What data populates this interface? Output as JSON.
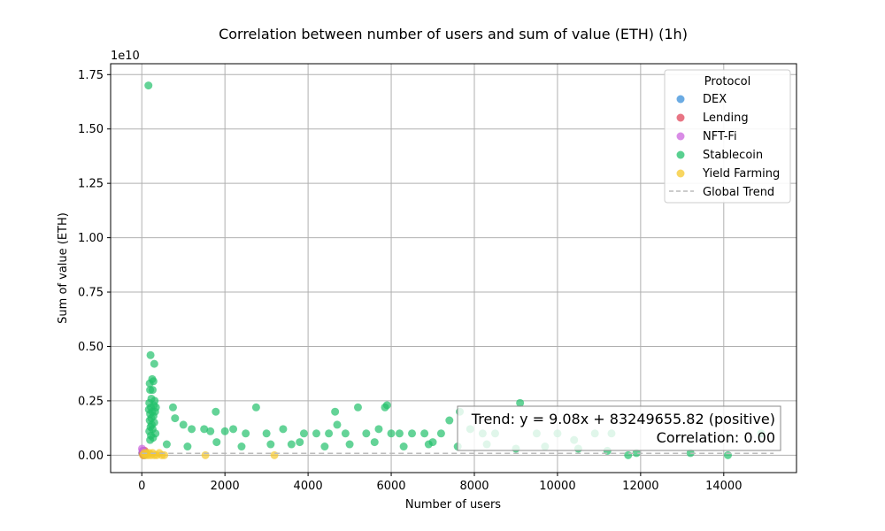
{
  "chart_data": {
    "type": "scatter",
    "title": "Correlation between number of users and sum of value (ETH) (1h)",
    "xlabel": "Number of users",
    "ylabel": "Sum of value (ETH)",
    "y_offset_label": "1e10",
    "xlim": [
      -750,
      15750
    ],
    "ylim": [
      -800000000.0,
      18000000000.0
    ],
    "x_ticks": [
      0,
      2000,
      4000,
      6000,
      8000,
      10000,
      12000,
      14000
    ],
    "x_tick_labels": [
      "0",
      "2000",
      "4000",
      "6000",
      "8000",
      "10000",
      "12000",
      "14000"
    ],
    "y_ticks": [
      0,
      2500000000.0,
      5000000000.0,
      7500000000.0,
      10000000000.0,
      12500000000.0,
      15000000000.0,
      17500000000.0
    ],
    "y_tick_labels": [
      "0.00",
      "0.25",
      "0.50",
      "0.75",
      "1.00",
      "1.25",
      "1.50",
      "1.75"
    ],
    "grid": true,
    "legend": {
      "title": "Protocol",
      "placement": "top-right",
      "entries": [
        "DEX",
        "Lending",
        "NFT-Fi",
        "Stablecoin",
        "Yield Farming",
        "Global Trend"
      ]
    },
    "annotation": {
      "line1": "Trend: y = 9.08x + 83249655.82 (positive)",
      "line2": "Correlation: 0.00"
    },
    "trend": {
      "slope": 9.08,
      "intercept": 83249655.82,
      "x_range": [
        0,
        15200
      ]
    },
    "series": [
      {
        "name": "DEX",
        "color": "#3a8fd9",
        "points": [
          [
            10,
            100000000.0
          ],
          [
            30,
            200000000.0
          ],
          [
            60,
            0.0
          ],
          [
            90,
            100000000.0
          ]
        ]
      },
      {
        "name": "Lending",
        "color": "#e0475b",
        "points": [
          [
            15,
            100000000.0
          ],
          [
            40,
            0.0
          ],
          [
            70,
            200000000.0
          ]
        ]
      },
      {
        "name": "NFT-Fi",
        "color": "#cc66dd",
        "points": [
          [
            5,
            300000000.0
          ],
          [
            20,
            200000000.0
          ],
          [
            45,
            100000000.0
          ]
        ]
      },
      {
        "name": "Stablecoin",
        "color": "#22c06b",
        "points": [
          [
            160,
            17000000000.0
          ],
          [
            210,
            4600000000.0
          ],
          [
            300,
            4200000000.0
          ],
          [
            250,
            3500000000.0
          ],
          [
            190,
            3300000000.0
          ],
          [
            280,
            3400000000.0
          ],
          [
            200,
            3000000000.0
          ],
          [
            260,
            3000000000.0
          ],
          [
            230,
            2600000000.0
          ],
          [
            310,
            2500000000.0
          ],
          [
            180,
            2400000000.0
          ],
          [
            290,
            2300000000.0
          ],
          [
            220,
            2200000000.0
          ],
          [
            340,
            2200000000.0
          ],
          [
            170,
            2100000000.0
          ],
          [
            250,
            2000000000.0
          ],
          [
            320,
            2000000000.0
          ],
          [
            200,
            1900000000.0
          ],
          [
            280,
            1800000000.0
          ],
          [
            230,
            1700000000.0
          ],
          [
            190,
            1600000000.0
          ],
          [
            300,
            1500000000.0
          ],
          [
            240,
            1400000000.0
          ],
          [
            210,
            1300000000.0
          ],
          [
            260,
            1200000000.0
          ],
          [
            180,
            1100000000.0
          ],
          [
            330,
            1000000000.0
          ],
          [
            220,
            900000000.0
          ],
          [
            270,
            800000000.0
          ],
          [
            200,
            700000000.0
          ],
          [
            750,
            2200000000.0
          ],
          [
            800,
            1700000000.0
          ],
          [
            1000,
            1400000000.0
          ],
          [
            1200,
            1200000000.0
          ],
          [
            1500,
            1200000000.0
          ],
          [
            1650,
            1100000000.0
          ],
          [
            1780,
            2000000000.0
          ],
          [
            2000,
            1100000000.0
          ],
          [
            2200,
            1200000000.0
          ],
          [
            2500,
            1000000000.0
          ],
          [
            2750,
            2200000000.0
          ],
          [
            3000,
            1000000000.0
          ],
          [
            3400,
            1200000000.0
          ],
          [
            3600,
            500000000.0
          ],
          [
            3900,
            1000000000.0
          ],
          [
            4200,
            1000000000.0
          ],
          [
            4500,
            1000000000.0
          ],
          [
            4650,
            2000000000.0
          ],
          [
            4700,
            1400000000.0
          ],
          [
            4900,
            1000000000.0
          ],
          [
            5200,
            2200000000.0
          ],
          [
            5400,
            1000000000.0
          ],
          [
            5700,
            1200000000.0
          ],
          [
            5900,
            2300000000.0
          ],
          [
            5850,
            2200000000.0
          ],
          [
            6000,
            1000000000.0
          ],
          [
            6200,
            1000000000.0
          ],
          [
            6500,
            1000000000.0
          ],
          [
            6800,
            1000000000.0
          ],
          [
            7000,
            600000000.0
          ],
          [
            7200,
            1000000000.0
          ],
          [
            7400,
            1600000000.0
          ],
          [
            7650,
            2000000000.0
          ],
          [
            7900,
            1200000000.0
          ],
          [
            8200,
            1000000000.0
          ],
          [
            8500,
            1000000000.0
          ],
          [
            9100,
            2400000000.0
          ],
          [
            9500,
            1000000000.0
          ],
          [
            10000,
            1000000000.0
          ],
          [
            10400,
            700000000.0
          ],
          [
            10900,
            1000000000.0
          ],
          [
            11300,
            1000000000.0
          ],
          [
            11700,
            0.0
          ],
          [
            13200,
            100000000.0
          ],
          [
            14100,
            0.0
          ],
          [
            14900,
            1000000000.0
          ],
          [
            600,
            500000000.0
          ],
          [
            1100,
            400000000.0
          ],
          [
            1800,
            600000000.0
          ],
          [
            2400,
            400000000.0
          ],
          [
            3100,
            500000000.0
          ],
          [
            3800,
            600000000.0
          ],
          [
            4400,
            400000000.0
          ],
          [
            5000,
            500000000.0
          ],
          [
            5600,
            600000000.0
          ],
          [
            6300,
            400000000.0
          ],
          [
            6900,
            500000000.0
          ],
          [
            7600,
            400000000.0
          ],
          [
            8300,
            500000000.0
          ],
          [
            9000,
            300000000.0
          ],
          [
            9700,
            400000000.0
          ],
          [
            10500,
            300000000.0
          ],
          [
            11200,
            200000000.0
          ],
          [
            11900,
            100000000.0
          ]
        ]
      },
      {
        "name": "Yield Farming",
        "color": "#f5c82c",
        "points": [
          [
            30,
            0.0
          ],
          [
            60,
            100000000.0
          ],
          [
            90,
            0.0
          ],
          [
            120,
            100000000.0
          ],
          [
            150,
            0.0
          ],
          [
            180,
            100000000.0
          ],
          [
            220,
            0.0
          ],
          [
            260,
            100000000.0
          ],
          [
            300,
            0.0
          ],
          [
            360,
            0.0
          ],
          [
            420,
            100000000.0
          ],
          [
            480,
            0.0
          ],
          [
            540,
            0.0
          ],
          [
            1530,
            0.0
          ],
          [
            3190,
            0.0
          ]
        ]
      }
    ]
  }
}
